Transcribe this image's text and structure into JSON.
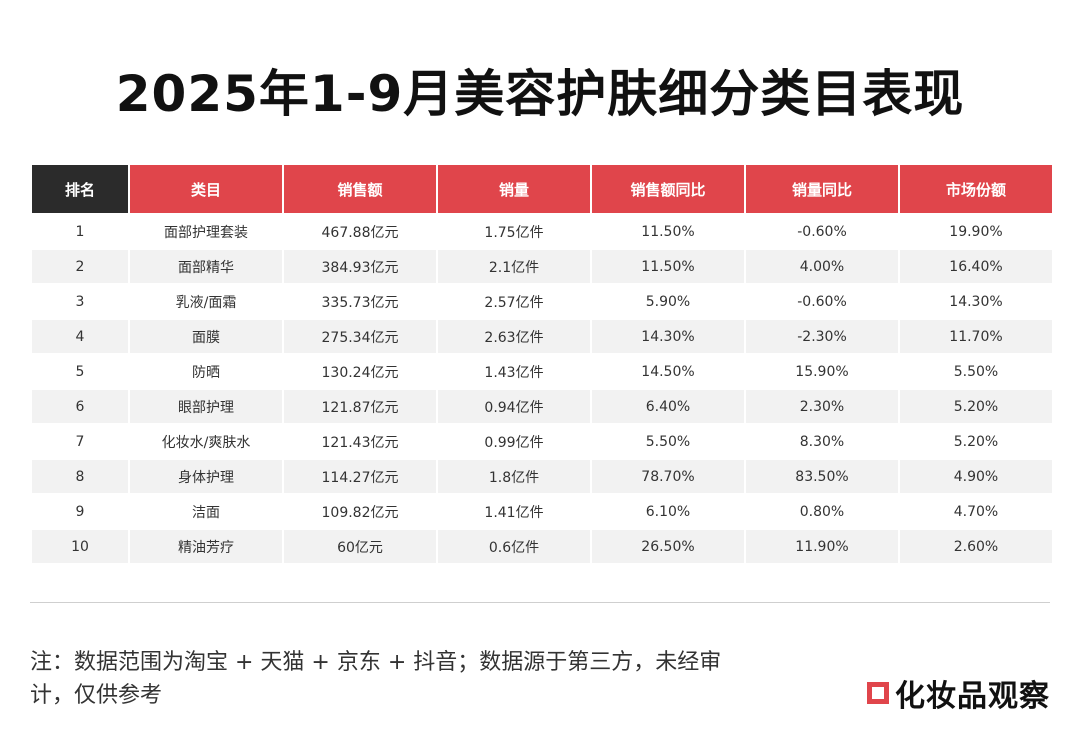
{
  "title": "2025年1-9月美容护肤细分类目表现",
  "table": {
    "headers": [
      "排名",
      "类目",
      "销售额",
      "销量",
      "销售额同比",
      "销量同比",
      "市场份额"
    ],
    "rows": [
      [
        "1",
        "面部护理套装",
        "467.88亿元",
        "1.75亿件",
        "11.50%",
        "-0.60%",
        "19.90%"
      ],
      [
        "2",
        "面部精华",
        "384.93亿元",
        "2.1亿件",
        "11.50%",
        "4.00%",
        "16.40%"
      ],
      [
        "3",
        "乳液/面霜",
        "335.73亿元",
        "2.57亿件",
        "5.90%",
        "-0.60%",
        "14.30%"
      ],
      [
        "4",
        "面膜",
        "275.34亿元",
        "2.63亿件",
        "14.30%",
        "-2.30%",
        "11.70%"
      ],
      [
        "5",
        "防晒",
        "130.24亿元",
        "1.43亿件",
        "14.50%",
        "15.90%",
        "5.50%"
      ],
      [
        "6",
        "眼部护理",
        "121.87亿元",
        "0.94亿件",
        "6.40%",
        "2.30%",
        "5.20%"
      ],
      [
        "7",
        "化妆水/爽肤水",
        "121.43亿元",
        "0.99亿件",
        "5.50%",
        "8.30%",
        "5.20%"
      ],
      [
        "8",
        "身体护理",
        "114.27亿元",
        "1.8亿件",
        "78.70%",
        "83.50%",
        "4.90%"
      ],
      [
        "9",
        "洁面",
        "109.82亿元",
        "1.41亿件",
        "6.10%",
        "0.80%",
        "4.70%"
      ],
      [
        "10",
        "精油芳疗",
        "60亿元",
        "0.6亿件",
        "26.50%",
        "11.90%",
        "2.60%"
      ]
    ]
  },
  "note": "注：数据范围为淘宝 + 天猫 + 京东 + 抖音；数据源于第三方，未经审计，仅供参考",
  "logo": {
    "text": "化妆品观察",
    "accent_color": "#e0454b"
  },
  "colors": {
    "header_red": "#e0454b",
    "header_dark": "#2b2b2b",
    "stripe": "#f2f2f2"
  }
}
